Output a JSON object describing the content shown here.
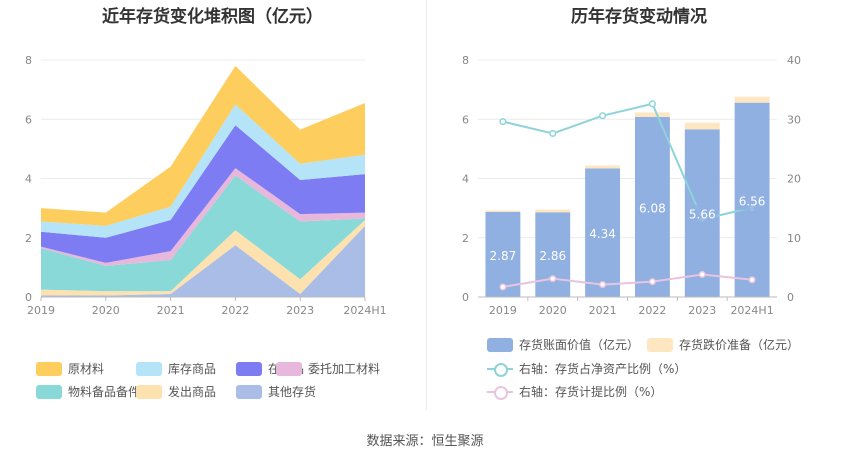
{
  "source_label": "数据来源：恒生聚源",
  "colors": {
    "raw": "#fdcd5e",
    "goods": "#b5e3f7",
    "wip": "#7d7cf3",
    "consign": "#e8b7dc",
    "supplies": "#88d9d8",
    "shipped": "#fde1ae",
    "other": "#a9bde6",
    "book": "#8fb0e0",
    "provision": "#fde6c0",
    "ratio_line": "#8fd3da",
    "provision_line": "#e9c4e0"
  },
  "chart_data": [
    {
      "type": "area",
      "title": "近年存货变化堆积图（亿元）",
      "categories": [
        "2019",
        "2020",
        "2021",
        "2022",
        "2023",
        "2024H1"
      ],
      "ylim": [
        0,
        8
      ],
      "yticks": [
        0,
        2,
        4,
        6,
        8
      ],
      "grid": true,
      "legend_position": "bottom",
      "series": [
        {
          "name": "其他存货",
          "color_key": "other",
          "values": [
            0.05,
            0.05,
            0.1,
            1.75,
            0.1,
            2.4
          ]
        },
        {
          "name": "发出商品",
          "color_key": "shipped",
          "values": [
            0.2,
            0.15,
            0.1,
            0.5,
            0.5,
            0.2
          ]
        },
        {
          "name": "物料备品备件",
          "color_key": "supplies",
          "values": [
            1.4,
            0.85,
            1.05,
            1.85,
            1.95,
            0.05
          ]
        },
        {
          "name": "委托加工材料",
          "color_key": "consign",
          "values": [
            0.05,
            0.1,
            0.3,
            0.25,
            0.25,
            0.2
          ]
        },
        {
          "name": "在产品",
          "color_key": "wip",
          "values": [
            0.5,
            0.85,
            1.05,
            1.45,
            1.15,
            1.3
          ]
        },
        {
          "name": "库存商品",
          "color_key": "goods",
          "values": [
            0.35,
            0.4,
            0.45,
            0.7,
            0.55,
            0.65
          ]
        },
        {
          "name": "原材料",
          "color_key": "raw",
          "values": [
            0.45,
            0.45,
            1.35,
            1.3,
            1.15,
            1.75
          ]
        }
      ],
      "legend_order": [
        "原材料",
        "库存商品",
        "在产品",
        "委托加工材料",
        "物料备品备件",
        "发出商品",
        "其他存货"
      ]
    },
    {
      "type": "bar",
      "title": "历年存货变动情况",
      "categories": [
        "2019",
        "2020",
        "2021",
        "2022",
        "2023",
        "2024H1"
      ],
      "ylim": [
        0,
        8
      ],
      "yticks": [
        0,
        2,
        4,
        6,
        8
      ],
      "y2lim": [
        0,
        40
      ],
      "y2ticks": [
        0,
        10,
        20,
        30,
        40
      ],
      "grid": true,
      "legend_position": "bottom",
      "series": [
        {
          "name": "存货账面价值（亿元）",
          "axis": "left",
          "kind": "bar",
          "color_key": "book",
          "values": [
            2.87,
            2.86,
            4.34,
            6.08,
            5.66,
            6.56
          ],
          "data_labels": [
            "2.87",
            "2.86",
            "4.34",
            "6.08",
            "5.66",
            "6.56"
          ]
        },
        {
          "name": "存货跌价准备（亿元）",
          "axis": "left",
          "kind": "bar-stack",
          "color_key": "provision",
          "values": [
            0.05,
            0.09,
            0.1,
            0.15,
            0.22,
            0.2
          ]
        },
        {
          "name": "右轴：存货占净资产比例（%）",
          "axis": "right",
          "kind": "line",
          "color_key": "ratio_line",
          "values": [
            29.6,
            27.6,
            30.6,
            32.6,
            13.1,
            15.1
          ]
        },
        {
          "name": "右轴：存货计提比例（%）",
          "axis": "right",
          "kind": "line",
          "color_key": "provision_line",
          "values": [
            1.7,
            3.1,
            2.1,
            2.6,
            3.8,
            2.9
          ]
        }
      ]
    }
  ]
}
